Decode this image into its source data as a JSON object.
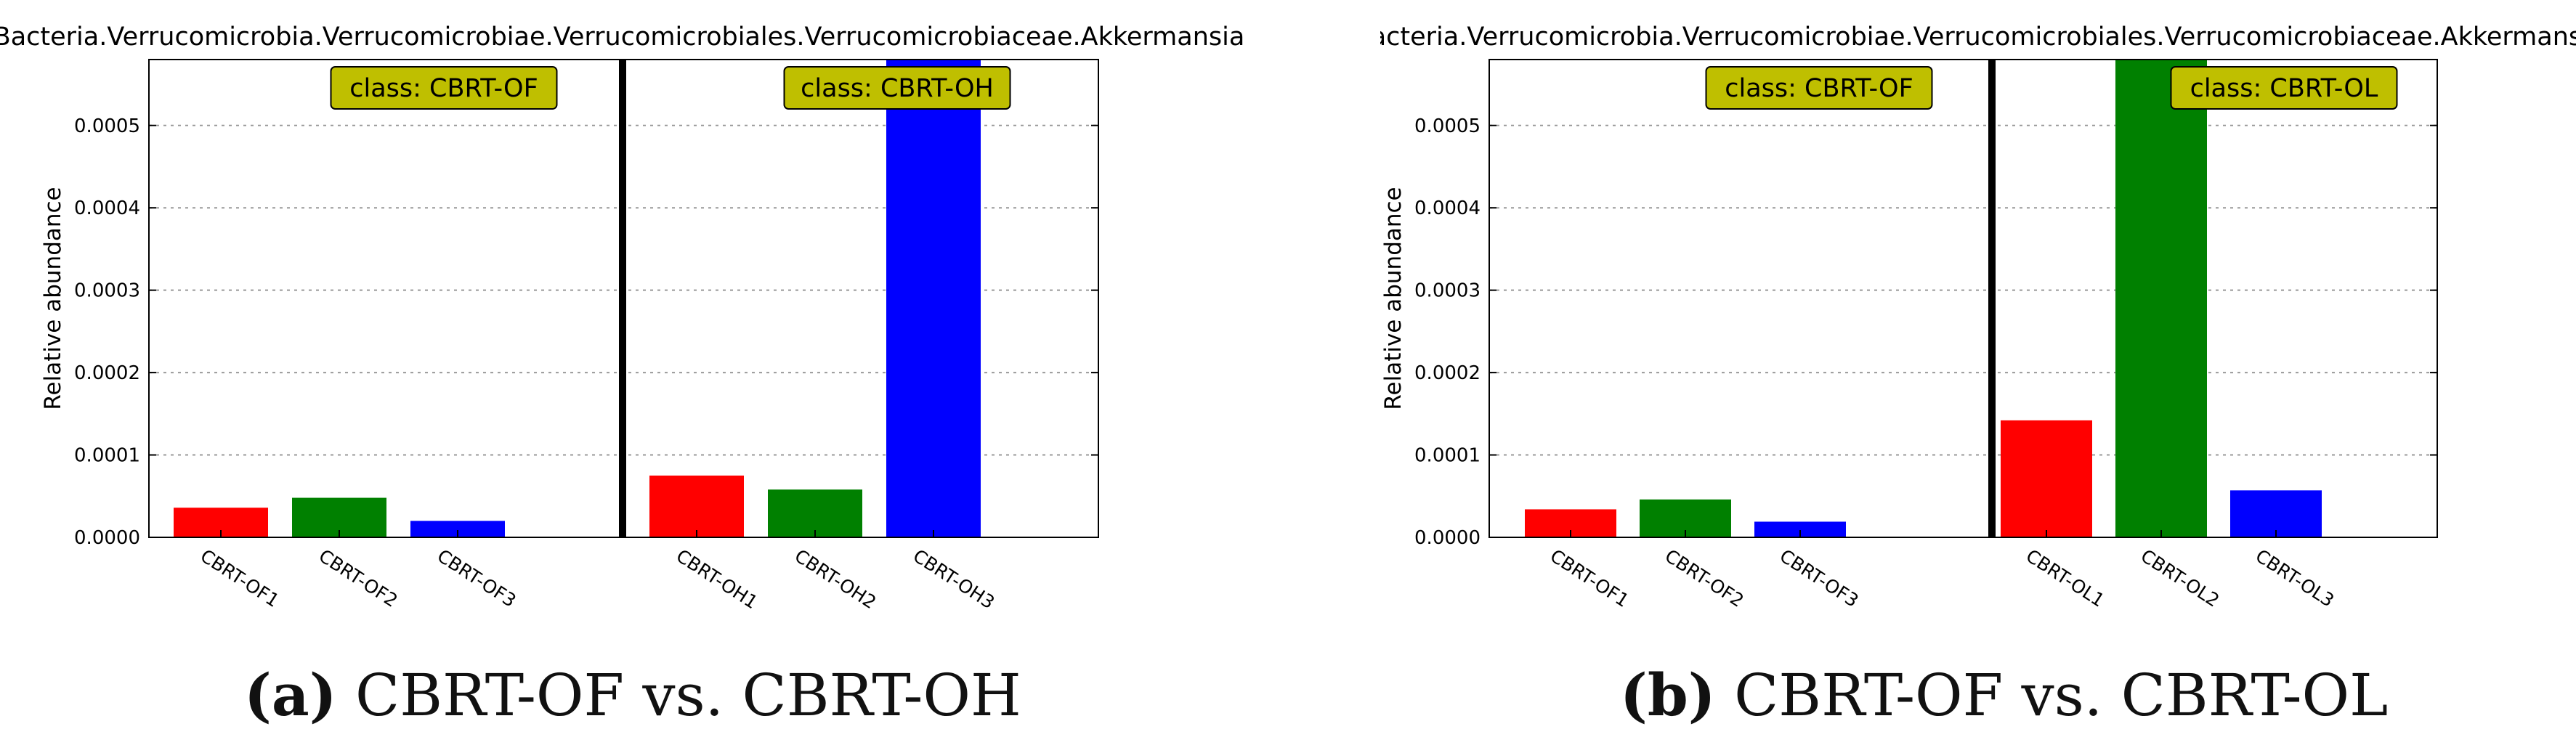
{
  "colors": {
    "red": "#ff0000",
    "green": "#008000",
    "blue": "#0000ff",
    "class_box": "#bfbf00",
    "grid": "#999999"
  },
  "chart_data": [
    {
      "type": "bar",
      "title": "Bacteria.Verrucomicrobia.Verrucomicrobiae.Verrucomicrobiales.Verrucomicrobiaceae.Akkermansia",
      "ylabel": "Relative abundance",
      "xlabel": "",
      "ylim": [
        0,
        0.00058
      ],
      "yticks": [
        "0.0000",
        "0.0001",
        "0.0002",
        "0.0003",
        "0.0004",
        "0.0005"
      ],
      "yticks_values": [
        0,
        0.0001,
        0.0002,
        0.0003,
        0.0004,
        0.0005
      ],
      "grid": true,
      "groups": [
        {
          "label": "class: CBRT-OF",
          "categories": [
            "CBRT-OF1",
            "CBRT-OF2",
            "CBRT-OF3"
          ],
          "values": [
            3.6e-05,
            4.8e-05,
            2e-05
          ],
          "colors": [
            "red",
            "green",
            "blue"
          ]
        },
        {
          "label": "class: CBRT-OH",
          "categories": [
            "CBRT-OH1",
            "CBRT-OH2",
            "CBRT-OH3"
          ],
          "values": [
            7.5e-05,
            5.8e-05,
            0.00058
          ],
          "colors": [
            "red",
            "green",
            "blue"
          ]
        }
      ],
      "caption_letter": "(a)",
      "caption_text": " CBRT-OF vs. CBRT-OH"
    },
    {
      "type": "bar",
      "title": "Bacteria.Verrucomicrobia.Verrucomicrobiae.Verrucomicrobiales.Verrucomicrobiaceae.Akkermansia",
      "ylabel": "Relative abundance",
      "xlabel": "",
      "ylim": [
        0,
        0.00058
      ],
      "yticks": [
        "0.0000",
        "0.0001",
        "0.0002",
        "0.0003",
        "0.0004",
        "0.0005"
      ],
      "yticks_values": [
        0,
        0.0001,
        0.0002,
        0.0003,
        0.0004,
        0.0005
      ],
      "grid": true,
      "groups": [
        {
          "label": "class: CBRT-OF",
          "categories": [
            "CBRT-OF1",
            "CBRT-OF2",
            "CBRT-OF3"
          ],
          "values": [
            3.4e-05,
            4.6e-05,
            1.9e-05
          ],
          "colors": [
            "red",
            "green",
            "blue"
          ]
        },
        {
          "label": "class: CBRT-OL",
          "categories": [
            "CBRT-OL1",
            "CBRT-OL2",
            "CBRT-OL3"
          ],
          "values": [
            0.000142,
            0.00058,
            5.7e-05
          ],
          "colors": [
            "red",
            "green",
            "blue"
          ]
        }
      ],
      "caption_letter": "(b)",
      "caption_text": " CBRT-OF vs. CBRT-OL"
    }
  ]
}
